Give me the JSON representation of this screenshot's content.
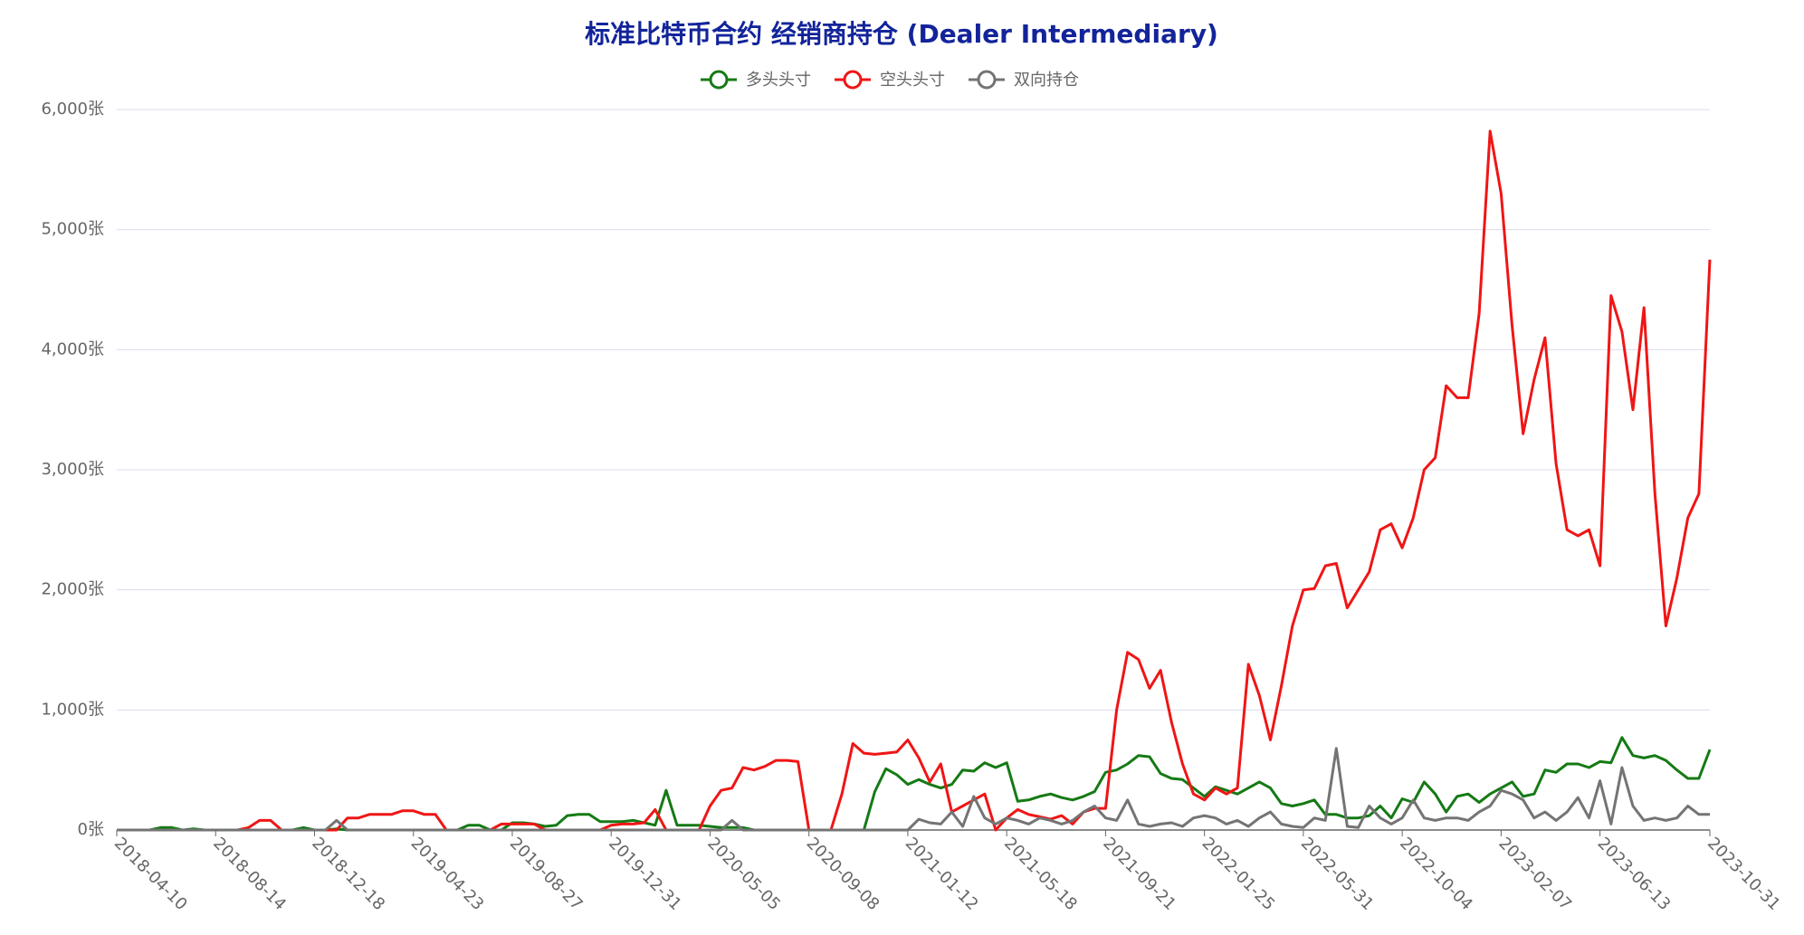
{
  "chart_data": {
    "type": "line",
    "title": "标准比特币合约 经销商持仓 (Dealer Intermediary)",
    "categories": [
      "2018-04-10",
      null,
      null,
      null,
      null,
      null,
      null,
      null,
      null,
      "2018-08-14",
      null,
      null,
      null,
      null,
      null,
      null,
      null,
      null,
      "2018-12-18",
      null,
      null,
      null,
      null,
      null,
      null,
      null,
      null,
      "2019-04-23",
      null,
      null,
      null,
      null,
      null,
      null,
      null,
      null,
      "2019-08-27",
      null,
      null,
      null,
      null,
      null,
      null,
      null,
      null,
      "2019-12-31",
      null,
      null,
      null,
      null,
      null,
      null,
      null,
      null,
      "2020-05-05",
      null,
      null,
      null,
      null,
      null,
      null,
      null,
      null,
      "2020-09-08",
      null,
      null,
      null,
      null,
      null,
      null,
      null,
      null,
      "2021-01-12",
      null,
      null,
      null,
      null,
      null,
      null,
      null,
      null,
      "2021-05-18",
      null,
      null,
      null,
      null,
      null,
      null,
      null,
      null,
      "2021-09-21",
      null,
      null,
      null,
      null,
      null,
      null,
      null,
      null,
      "2022-01-25",
      null,
      null,
      null,
      null,
      null,
      null,
      null,
      null,
      "2022-05-31",
      null,
      null,
      null,
      null,
      null,
      null,
      null,
      null,
      "2022-10-04",
      null,
      null,
      null,
      null,
      null,
      null,
      null,
      null,
      "2023-02-07",
      null,
      null,
      null,
      null,
      null,
      null,
      null,
      null,
      "2023-06-13",
      null,
      null,
      null,
      null,
      null,
      null,
      null,
      null,
      null,
      "2023-10-31"
    ],
    "series": [
      {
        "name": "多头头寸",
        "color": "#157a15",
        "values": [
          0,
          0,
          0,
          0,
          20,
          20,
          0,
          10,
          0,
          0,
          0,
          0,
          0,
          0,
          0,
          0,
          0,
          20,
          0,
          0,
          10,
          0,
          0,
          0,
          0,
          0,
          0,
          0,
          0,
          0,
          0,
          0,
          40,
          40,
          0,
          0,
          60,
          60,
          50,
          30,
          40,
          120,
          130,
          130,
          70,
          70,
          70,
          80,
          60,
          40,
          330,
          40,
          40,
          40,
          30,
          20,
          20,
          20,
          0,
          0,
          0,
          0,
          0,
          0,
          0,
          0,
          0,
          0,
          0,
          320,
          510,
          460,
          380,
          420,
          380,
          350,
          380,
          500,
          490,
          560,
          520,
          560,
          240,
          250,
          280,
          300,
          270,
          250,
          280,
          320,
          480,
          500,
          550,
          620,
          610,
          470,
          430,
          420,
          350,
          280,
          360,
          330,
          300,
          350,
          400,
          350,
          220,
          200,
          220,
          250,
          130,
          130,
          100,
          100,
          120,
          200,
          100,
          260,
          230,
          400,
          300,
          150,
          280,
          300,
          230,
          300,
          350,
          400,
          280,
          300,
          500,
          480,
          550,
          550,
          520,
          570,
          560,
          770,
          620,
          600,
          620,
          580,
          500,
          430,
          430,
          670
        ]
      },
      {
        "name": "空头头寸",
        "color": "#f01515",
        "values": [
          0,
          0,
          0,
          0,
          0,
          0,
          0,
          0,
          0,
          0,
          0,
          0,
          20,
          80,
          80,
          0,
          0,
          0,
          0,
          0,
          0,
          100,
          100,
          130,
          130,
          130,
          160,
          160,
          130,
          130,
          0,
          0,
          0,
          0,
          0,
          50,
          50,
          50,
          50,
          0,
          0,
          0,
          0,
          0,
          0,
          40,
          50,
          50,
          60,
          170,
          0,
          0,
          0,
          0,
          200,
          330,
          350,
          520,
          500,
          530,
          580,
          580,
          570,
          0,
          0,
          0,
          300,
          720,
          640,
          630,
          640,
          650,
          750,
          600,
          400,
          550,
          150,
          200,
          250,
          300,
          0,
          100,
          170,
          130,
          110,
          90,
          120,
          50,
          150,
          180,
          180,
          1000,
          1480,
          1420,
          1180,
          1330,
          900,
          550,
          300,
          250,
          350,
          300,
          350,
          1380,
          1120,
          750,
          1200,
          1700,
          2000,
          2010,
          2200,
          2220,
          1850,
          2000,
          2150,
          2500,
          2550,
          2350,
          2600,
          3000,
          3100,
          3700,
          3600,
          3600,
          4300,
          5820,
          5300,
          4200,
          3300,
          3750,
          4100,
          3050,
          2500,
          2450,
          2500,
          2200,
          4450,
          4150,
          3500,
          4350,
          2800,
          1700,
          2100,
          2600,
          2800,
          4750
        ]
      },
      {
        "name": "双向持仓",
        "color": "#747474",
        "values": [
          0,
          0,
          0,
          0,
          0,
          0,
          0,
          0,
          0,
          0,
          0,
          0,
          0,
          0,
          0,
          0,
          0,
          0,
          0,
          0,
          80,
          0,
          0,
          0,
          0,
          0,
          0,
          0,
          0,
          0,
          0,
          0,
          0,
          0,
          0,
          0,
          0,
          0,
          0,
          0,
          0,
          0,
          0,
          0,
          0,
          0,
          0,
          0,
          0,
          0,
          0,
          0,
          0,
          0,
          0,
          0,
          80,
          0,
          0,
          0,
          0,
          0,
          0,
          0,
          0,
          0,
          0,
          0,
          0,
          0,
          0,
          0,
          0,
          90,
          60,
          50,
          150,
          30,
          280,
          100,
          50,
          100,
          80,
          50,
          100,
          80,
          50,
          80,
          150,
          200,
          100,
          80,
          250,
          50,
          30,
          50,
          60,
          30,
          100,
          120,
          100,
          50,
          80,
          30,
          100,
          150,
          50,
          30,
          20,
          100,
          80,
          680,
          30,
          20,
          200,
          100,
          50,
          100,
          250,
          100,
          80,
          100,
          100,
          80,
          150,
          200,
          330,
          300,
          250,
          100,
          150,
          80,
          150,
          270,
          100,
          410,
          50,
          520,
          200,
          80,
          100,
          80,
          100,
          200,
          130,
          130
        ]
      }
    ],
    "ylim": [
      0,
      6000
    ],
    "yticks": [
      {
        "value": 0,
        "label": "0张"
      },
      {
        "value": 1000,
        "label": "1,000张"
      },
      {
        "value": 2000,
        "label": "2,000张"
      },
      {
        "value": 3000,
        "label": "3,000张"
      },
      {
        "value": 4000,
        "label": "4,000张"
      },
      {
        "value": 5000,
        "label": "5,000张"
      },
      {
        "value": 6000,
        "label": "6,000张"
      }
    ],
    "grid": true
  }
}
